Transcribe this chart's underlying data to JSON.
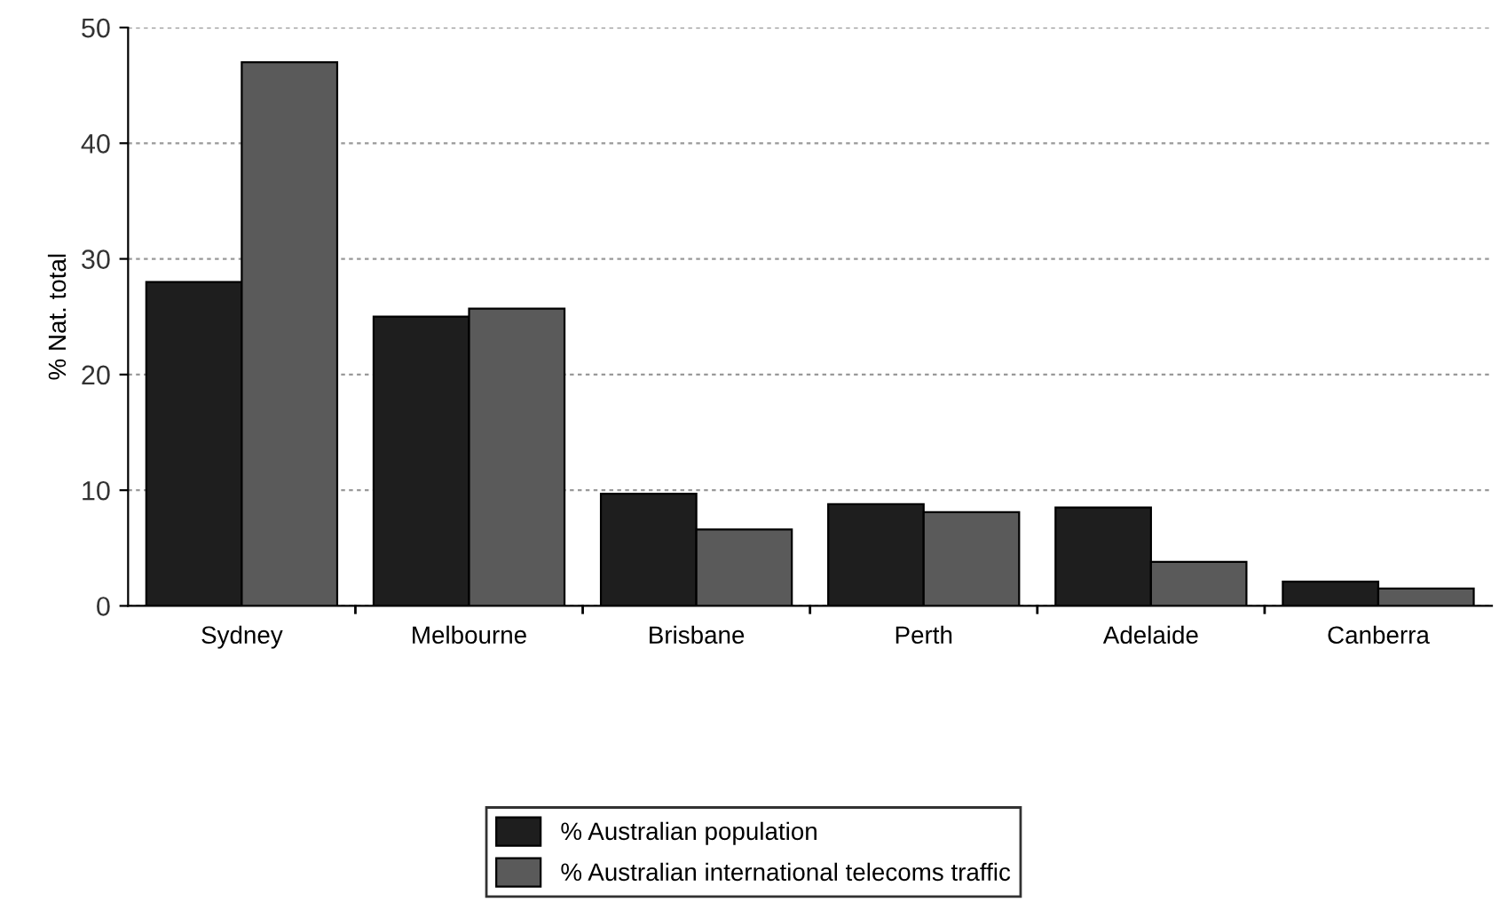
{
  "chart_data": {
    "type": "bar",
    "ylabel": "% Nat. total",
    "categories": [
      "Sydney",
      "Melbourne",
      "Brisbane",
      "Perth",
      "Adelaide",
      "Canberra"
    ],
    "series": [
      {
        "name": "% Australian population",
        "color": "#1e1e1e",
        "values": [
          28,
          25,
          9.7,
          8.8,
          8.5,
          2.1
        ]
      },
      {
        "name": "% Australian international telecoms traffic",
        "color": "#5a5a5a",
        "values": [
          47,
          25.7,
          6.6,
          8.1,
          3.8,
          1.5
        ]
      }
    ],
    "ylim": [
      0,
      50
    ],
    "yticks": [
      0,
      10,
      20,
      30,
      40,
      50
    ],
    "grid": "y",
    "legend": "bottom"
  }
}
